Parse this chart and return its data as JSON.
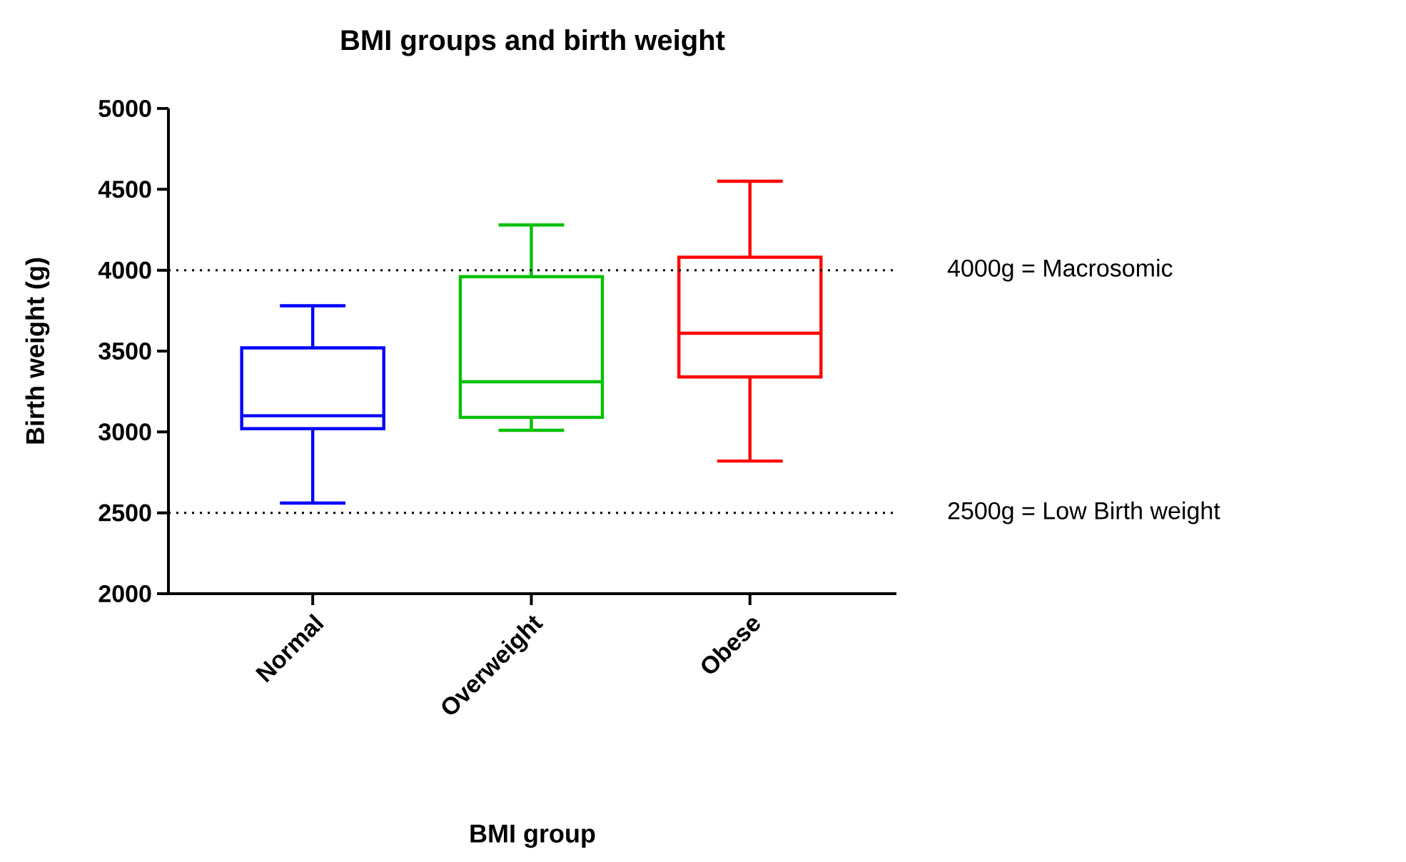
{
  "chart_data": {
    "type": "box",
    "title": "BMI groups and birth weight",
    "xlabel": "BMI group",
    "ylabel": "Birth weight (g)",
    "categories": [
      "Normal",
      "Overweight",
      "Obese"
    ],
    "colors": [
      "#0000ff",
      "#00c000",
      "#ff0000"
    ],
    "boxes": [
      {
        "low": 2560,
        "q1": 3020,
        "median": 3100,
        "q3": 3520,
        "high": 3780
      },
      {
        "low": 3010,
        "q1": 3090,
        "median": 3310,
        "q3": 3960,
        "high": 4280
      },
      {
        "low": 2820,
        "q1": 3340,
        "median": 3610,
        "q3": 4080,
        "high": 4550
      }
    ],
    "ylim": [
      2000,
      5000
    ],
    "yticks": [
      2000,
      2500,
      3000,
      3500,
      4000,
      4500,
      5000
    ],
    "ref_lines": [
      {
        "axis": "y",
        "value": 4000,
        "label": "4000g = Macrosomic",
        "color": "#000000",
        "line_style": "dotted"
      },
      {
        "axis": "y",
        "value": 2500,
        "label": "2500g = Low Birth weight",
        "color": "#000000",
        "line_style": "dotted"
      }
    ],
    "grid": false
  }
}
